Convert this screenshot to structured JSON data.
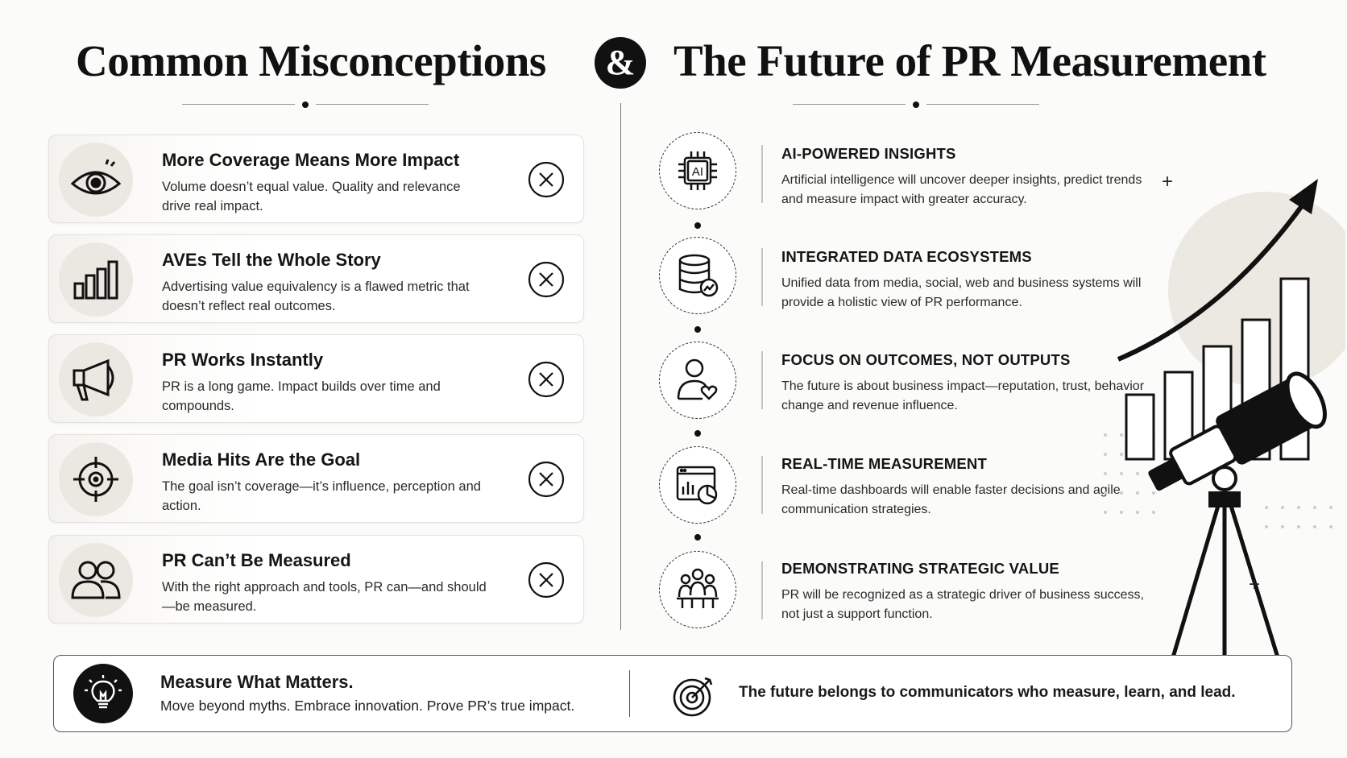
{
  "header": {
    "left_title": "Common Misconceptions",
    "ampersand": "&",
    "right_title": "The Future of PR Measurement"
  },
  "misconceptions": [
    {
      "icon": "eye-icon",
      "title": "More Coverage Means More Impact",
      "text": "Volume doesn’t equal value. Quality and relevance drive real impact."
    },
    {
      "icon": "bar-chart-icon",
      "title": "AVEs Tell the Whole Story",
      "text": "Advertising value equivalency is a flawed metric that doesn’t reflect real outcomes."
    },
    {
      "icon": "megaphone-icon",
      "title": "PR Works Instantly",
      "text": "PR is a long game. Impact builds over time and compounds."
    },
    {
      "icon": "crosshair-icon",
      "title": "Media Hits Are the Goal",
      "text": "The goal isn’t coverage—it’s influence, perception and action."
    },
    {
      "icon": "users-icon",
      "title": "PR Can’t Be Measured",
      "text": "With the right approach and tools, PR can—and should—be measured."
    }
  ],
  "future": [
    {
      "icon": "ai-chip-icon",
      "chip_label": "AI",
      "title": "AI-POWERED INSIGHTS",
      "text": "Artificial intelligence will uncover deeper insights, predict trends and measure impact with greater accuracy."
    },
    {
      "icon": "database-icon",
      "title": "INTEGRATED DATA ECOSYSTEMS",
      "text": "Unified data from media, social, web and business systems will provide a holistic view of PR performance."
    },
    {
      "icon": "person-heart-icon",
      "title": "FOCUS ON OUTCOMES, NOT OUTPUTS",
      "text": "The future is about business impact—reputation, trust, behavior change and revenue influence."
    },
    {
      "icon": "dashboard-icon",
      "title": "REAL-TIME MEASUREMENT",
      "text": "Real-time dashboards will enable faster decisions and agile communication strategies."
    },
    {
      "icon": "team-icon",
      "title": "DEMONSTRATING STRATEGIC VALUE",
      "text": "PR will be recognized as a strategic driver of business success, not just a support function."
    }
  ],
  "footer": {
    "left_title": "Measure What Matters.",
    "left_text": "Move beyond myths. Embrace innovation. Prove PR’s true impact.",
    "right_text": "The future belongs to communicators who measure, learn, and lead."
  }
}
